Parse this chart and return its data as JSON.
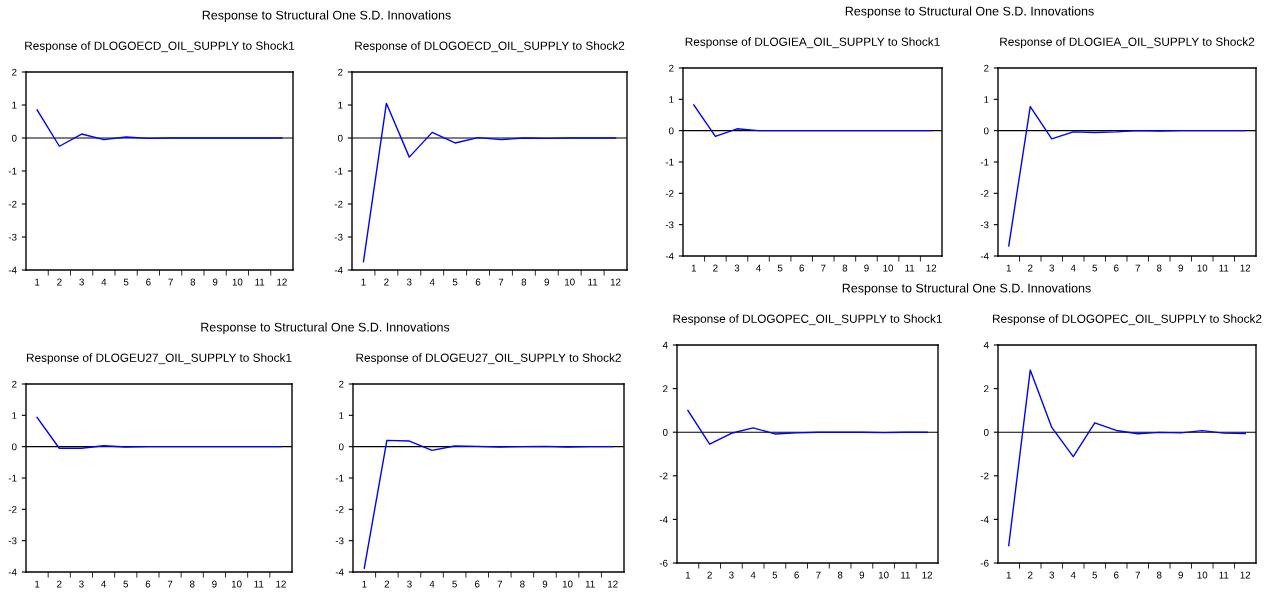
{
  "chart_data": [
    {
      "type": "line",
      "title": "Response of DLOGOECD_OIL_SUPPLY to Shock1",
      "annotations": [
        "Response to Structural One S.D. Innovations"
      ],
      "categories": [
        "1",
        "2",
        "3",
        "4",
        "5",
        "6",
        "7",
        "8",
        "9",
        "10",
        "11",
        "12"
      ],
      "series": [
        {
          "color": "#0000ff",
          "values": [
            0.85,
            -0.25,
            0.12,
            -0.05,
            0.03,
            -0.01,
            0.0,
            0.0,
            0.0,
            0.0,
            0.0,
            0.0
          ]
        }
      ],
      "ylim": [
        -4,
        2
      ],
      "yticks": [
        -4,
        -3,
        -2,
        -1,
        0,
        1,
        2
      ],
      "ref_lines": [
        {
          "axis": "y",
          "value": 0,
          "color": "#000000"
        }
      ]
    },
    {
      "type": "line",
      "title": "Response of DLOGOECD_OIL_SUPPLY to Shock2",
      "categories": [
        "1",
        "2",
        "3",
        "4",
        "5",
        "6",
        "7",
        "8",
        "9",
        "10",
        "11",
        "12"
      ],
      "series": [
        {
          "color": "#0000ff",
          "values": [
            -3.75,
            1.05,
            -0.58,
            0.17,
            -0.15,
            0.01,
            -0.05,
            0.0,
            -0.01,
            0.0,
            0.0,
            0.0
          ]
        }
      ],
      "ylim": [
        -4,
        2
      ],
      "yticks": [
        -4,
        -3,
        -2,
        -1,
        0,
        1,
        2
      ],
      "ref_lines": [
        {
          "axis": "y",
          "value": 0,
          "color": "#000000"
        }
      ]
    },
    {
      "type": "line",
      "title": "Response of DLOGIEA_OIL_SUPPLY to Shock1",
      "annotations": [
        "Response to Structural One S.D. Innovations"
      ],
      "categories": [
        "1",
        "2",
        "3",
        "4",
        "5",
        "6",
        "7",
        "8",
        "9",
        "10",
        "11",
        "12"
      ],
      "series": [
        {
          "color": "#0000ff",
          "values": [
            0.82,
            -0.18,
            0.06,
            0.0,
            0.0,
            0.0,
            0.0,
            0.0,
            0.0,
            0.0,
            0.0,
            0.0
          ]
        }
      ],
      "ylim": [
        -4,
        2
      ],
      "yticks": [
        -4,
        -3,
        -2,
        -1,
        0,
        1,
        2
      ],
      "ref_lines": [
        {
          "axis": "y",
          "value": 0,
          "color": "#000000"
        }
      ]
    },
    {
      "type": "line",
      "title": "Response of DLOGIEA_OIL_SUPPLY to Shock2",
      "categories": [
        "1",
        "2",
        "3",
        "4",
        "5",
        "6",
        "7",
        "8",
        "9",
        "10",
        "11",
        "12"
      ],
      "series": [
        {
          "color": "#0000ff",
          "values": [
            -3.68,
            0.77,
            -0.26,
            -0.04,
            -0.06,
            -0.04,
            0.0,
            -0.01,
            0.0,
            0.0,
            0.0,
            0.0
          ]
        }
      ],
      "ylim": [
        -4,
        2
      ],
      "yticks": [
        -4,
        -3,
        -2,
        -1,
        0,
        1,
        2
      ],
      "ref_lines": [
        {
          "axis": "y",
          "value": 0,
          "color": "#000000"
        }
      ]
    },
    {
      "type": "line",
      "title": "Response of DLOGEU27_OIL_SUPPLY to Shock1",
      "annotations": [
        "Response to Structural One S.D. Innovations"
      ],
      "categories": [
        "1",
        "2",
        "3",
        "4",
        "5",
        "6",
        "7",
        "8",
        "9",
        "10",
        "11",
        "12"
      ],
      "series": [
        {
          "color": "#0000ff",
          "values": [
            0.93,
            -0.05,
            -0.05,
            0.03,
            -0.01,
            0.0,
            0.0,
            0.0,
            0.0,
            0.0,
            0.0,
            0.0
          ]
        }
      ],
      "ylim": [
        -4,
        2
      ],
      "yticks": [
        -4,
        -3,
        -2,
        -1,
        0,
        1,
        2
      ],
      "ref_lines": [
        {
          "axis": "y",
          "value": 0,
          "color": "#000000"
        }
      ]
    },
    {
      "type": "line",
      "title": "Response of DLOGEU27_OIL_SUPPLY to Shock2",
      "categories": [
        "1",
        "2",
        "3",
        "4",
        "5",
        "6",
        "7",
        "8",
        "9",
        "10",
        "11",
        "12"
      ],
      "series": [
        {
          "color": "#0000ff",
          "values": [
            -3.88,
            0.2,
            0.18,
            -0.12,
            0.02,
            0.01,
            -0.01,
            0.0,
            0.01,
            -0.01,
            0.0,
            0.0
          ]
        }
      ],
      "ylim": [
        -4,
        2
      ],
      "yticks": [
        -4,
        -3,
        -2,
        -1,
        0,
        1,
        2
      ],
      "ref_lines": [
        {
          "axis": "y",
          "value": 0,
          "color": "#000000"
        }
      ]
    },
    {
      "type": "line",
      "title": "Response of DLOGOPEC_OIL_SUPPLY to Shock1",
      "annotations": [
        "Response to Structural One S.D. Innovations"
      ],
      "categories": [
        "1",
        "2",
        "3",
        "4",
        "5",
        "6",
        "7",
        "8",
        "9",
        "10",
        "11",
        "12"
      ],
      "series": [
        {
          "color": "#0000ff",
          "values": [
            1.0,
            -0.55,
            -0.05,
            0.2,
            -0.08,
            -0.03,
            0.0,
            0.0,
            0.0,
            -0.02,
            0.0,
            0.0
          ]
        }
      ],
      "ylim": [
        -6,
        4
      ],
      "yticks": [
        -6,
        -4,
        -2,
        0,
        2,
        4
      ],
      "ref_lines": [
        {
          "axis": "y",
          "value": 0,
          "color": "#000000"
        }
      ]
    },
    {
      "type": "line",
      "title": "Response of DLOGOPEC_OIL_SUPPLY to Shock2",
      "categories": [
        "1",
        "2",
        "3",
        "4",
        "5",
        "6",
        "7",
        "8",
        "9",
        "10",
        "11",
        "12"
      ],
      "series": [
        {
          "color": "#0000ff",
          "values": [
            -5.2,
            2.85,
            0.22,
            -1.12,
            0.43,
            0.08,
            -0.07,
            -0.01,
            -0.03,
            0.07,
            -0.04,
            -0.06
          ]
        }
      ],
      "ylim": [
        -6,
        4
      ],
      "yticks": [
        -6,
        -4,
        -2,
        0,
        2,
        4
      ],
      "ref_lines": [
        {
          "axis": "y",
          "value": 0,
          "color": "#000000"
        }
      ]
    }
  ]
}
